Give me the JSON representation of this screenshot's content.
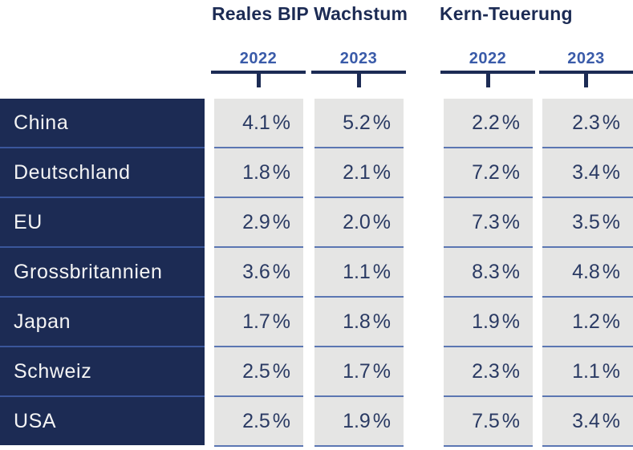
{
  "title_groups": {
    "bip": "Reales BIP Wachstum",
    "kern": "Kern-Teuerung"
  },
  "columns": [
    {
      "group": "bip",
      "year": "2022"
    },
    {
      "group": "bip",
      "year": "2023"
    },
    {
      "group": "kern",
      "year": "2022"
    },
    {
      "group": "kern",
      "year": "2023"
    }
  ],
  "colors": {
    "navy": "#1C2B54",
    "blue": "#3A5BA9",
    "cell_gray": "#E5E5E4",
    "sep_navy": "#3A569B",
    "sep_gray": "#5B76B2",
    "value_text": "#2A3A63"
  },
  "chart_data": {
    "type": "table",
    "title_left": "Reales BIP Wachstum",
    "title_right": "Kern-Teuerung",
    "categories": [
      "China",
      "Deutschland",
      "EU",
      "Grossbritannien",
      "Japan",
      "Schweiz",
      "USA"
    ],
    "series": [
      {
        "name": "Reales BIP Wachstum 2022",
        "unit": "%",
        "values": [
          4.1,
          1.8,
          2.9,
          3.6,
          1.7,
          2.5,
          2.5
        ]
      },
      {
        "name": "Reales BIP Wachstum 2023",
        "unit": "%",
        "values": [
          5.2,
          2.1,
          2.0,
          1.1,
          1.8,
          1.7,
          1.9
        ]
      },
      {
        "name": "Kern-Teuerung 2022",
        "unit": "%",
        "values": [
          2.2,
          7.2,
          7.3,
          8.3,
          1.9,
          2.3,
          7.5
        ]
      },
      {
        "name": "Kern-Teuerung 2023",
        "unit": "%",
        "values": [
          2.3,
          3.4,
          3.5,
          4.8,
          1.2,
          1.1,
          3.4
        ]
      }
    ],
    "rows": [
      {
        "country": "China",
        "bip_2022": "4.1 %",
        "bip_2023": "5.2 %",
        "kern_2022": "2.2 %",
        "kern_2023": "2.3 %"
      },
      {
        "country": "Deutschland",
        "bip_2022": "1.8 %",
        "bip_2023": "2.1 %",
        "kern_2022": "7.2 %",
        "kern_2023": "3.4 %"
      },
      {
        "country": "EU",
        "bip_2022": "2.9 %",
        "bip_2023": "2.0 %",
        "kern_2022": "7.3 %",
        "kern_2023": "3.5 %"
      },
      {
        "country": "Grossbritannien",
        "bip_2022": "3.6 %",
        "bip_2023": "1.1 %",
        "kern_2022": "8.3 %",
        "kern_2023": "4.8 %"
      },
      {
        "country": "Japan",
        "bip_2022": "1.7 %",
        "bip_2023": "1.8 %",
        "kern_2022": "1.9 %",
        "kern_2023": "1.2 %"
      },
      {
        "country": "Schweiz",
        "bip_2022": "2.5 %",
        "bip_2023": "1.7 %",
        "kern_2022": "2.3 %",
        "kern_2023": "1.1 %"
      },
      {
        "country": "USA",
        "bip_2022": "2.5 %",
        "bip_2023": "1.9 %",
        "kern_2022": "7.5 %",
        "kern_2023": "3.4 %"
      }
    ]
  }
}
